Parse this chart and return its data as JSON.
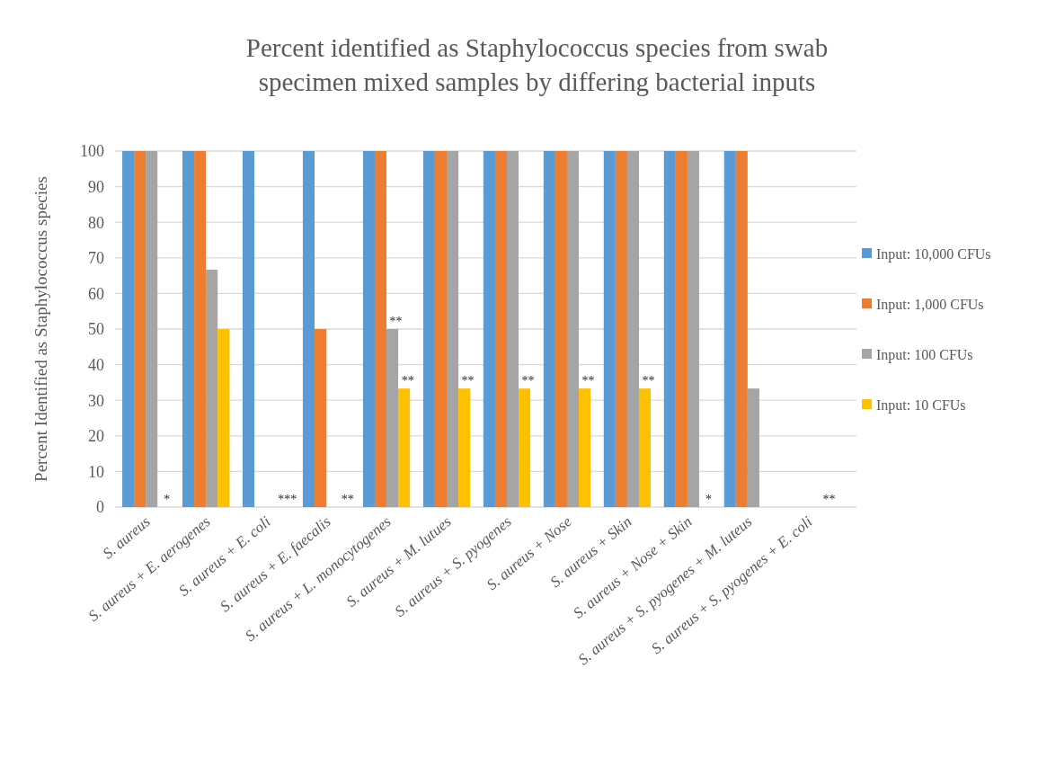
{
  "chart_data": {
    "type": "bar",
    "title": "Percent identified as Staphylococcus species from swab specimen mixed samples by differing bacterial inputs",
    "ylabel": "Percent Identified as Staphylococcus species",
    "categories": [
      "S. aureus",
      "S. aureus + E. aerogenes",
      "S. aureus + E. coli",
      "S. aureus + E. faecalis",
      "S. aureus + L. monocytogenes",
      "S. aureus + M. lutues",
      "S. aureus + S. pyogenes",
      "S. aureus + Nose",
      "S. aureus + Skin",
      "S. aureus + Nose + Skin",
      "S. aureus + S. pyogenes + M. luteus",
      "S. aureus + S. pyogenes + E. coli"
    ],
    "series": [
      {
        "name": "Input: 10,000 CFUs",
        "color": "#5b9bd5",
        "values": [
          100,
          100,
          100,
          100,
          100,
          100,
          100,
          100,
          100,
          100,
          100,
          0
        ]
      },
      {
        "name": "Input: 1,000 CFUs",
        "color": "#ed7d31",
        "values": [
          100,
          100,
          0,
          50,
          100,
          100,
          100,
          100,
          100,
          100,
          100,
          0
        ]
      },
      {
        "name": "Input: 100 CFUs",
        "color": "#a5a5a5",
        "values": [
          100,
          66.7,
          0,
          0,
          50,
          100,
          100,
          100,
          100,
          100,
          33.3,
          0
        ]
      },
      {
        "name": "Input: 10 CFUs",
        "color": "#ffc000",
        "values": [
          0,
          50,
          0,
          0,
          33.3,
          33.3,
          33.3,
          33.3,
          33.3,
          0,
          0,
          0
        ]
      }
    ],
    "ylim": [
      0,
      100
    ],
    "yticks": [
      0,
      10,
      20,
      30,
      40,
      50,
      60,
      70,
      80,
      90,
      100
    ],
    "grid": "y",
    "legend": "right",
    "annotations": [
      {
        "text": "*",
        "x": "S. aureus",
        "y": 0
      },
      {
        "text": "***",
        "x": "S. aureus + E. coli",
        "y": 0
      },
      {
        "text": "**",
        "x": "S. aureus + E. faecalis",
        "y": 0
      },
      {
        "text": "**",
        "x": "S. aureus + L. monocytogenes",
        "y": 50
      },
      {
        "text": "**",
        "x": "S. aureus + L. monocytogenes",
        "y": 33.3
      },
      {
        "text": "**",
        "x": "S. aureus + M. lutues",
        "y": 33.3
      },
      {
        "text": "**",
        "x": "S. aureus + S. pyogenes",
        "y": 33.3
      },
      {
        "text": "**",
        "x": "S. aureus + Nose",
        "y": 33.3
      },
      {
        "text": "**",
        "x": "S. aureus + Skin",
        "y": 33.3
      },
      {
        "text": "*",
        "x": "S. aureus + Nose + Skin",
        "y": 0
      },
      {
        "text": "**",
        "x": "S. aureus + S. pyogenes + E. coli",
        "y": 0
      }
    ]
  }
}
